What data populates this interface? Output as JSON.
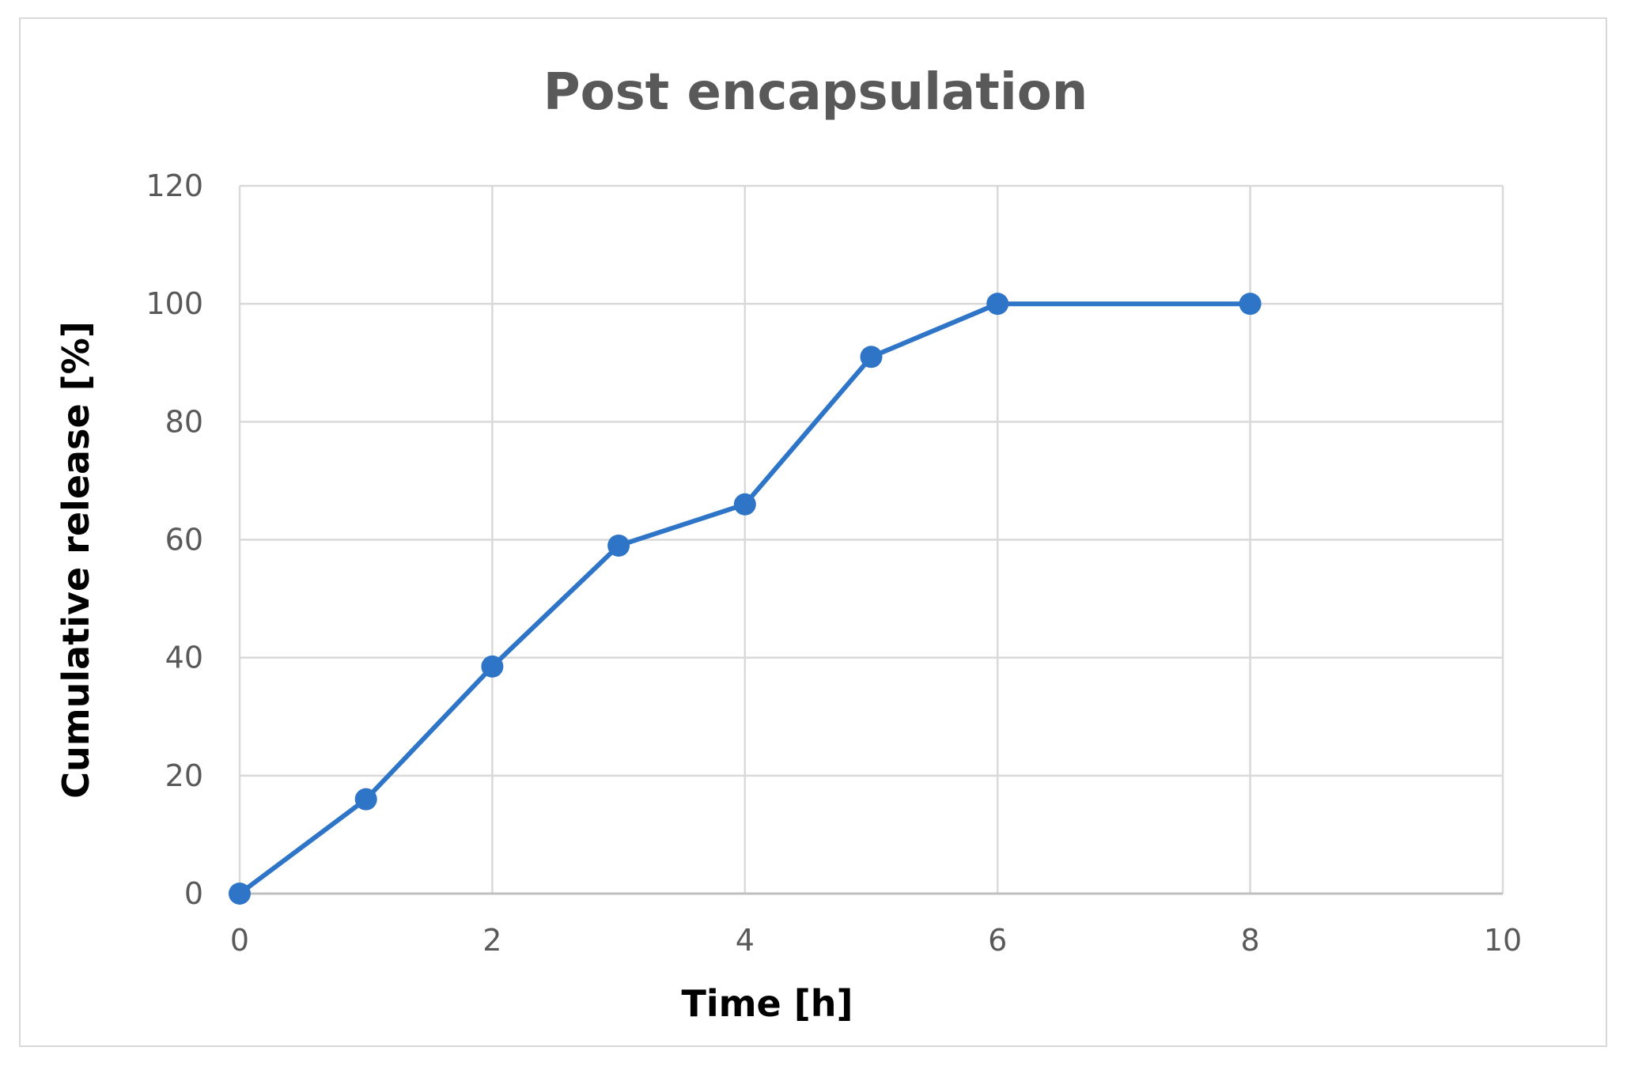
{
  "chart_data": {
    "type": "line",
    "title": "Post encapsulation",
    "xlabel": "Time [h]",
    "ylabel": "Cumulative release [%]",
    "xlim": [
      0,
      10
    ],
    "ylim": [
      0,
      120
    ],
    "x_ticks": [
      "0",
      "2",
      "4",
      "6",
      "8",
      "10"
    ],
    "y_ticks": [
      "0",
      "20",
      "40",
      "60",
      "80",
      "100",
      "120"
    ],
    "grid": true,
    "legend": "none",
    "series": [
      {
        "color": "#2E75C8",
        "marker": "circle",
        "x": [
          0,
          1,
          2,
          3,
          4,
          5,
          6,
          8
        ],
        "y": [
          0,
          16,
          38.5,
          59,
          66,
          91,
          100,
          100
        ]
      }
    ]
  }
}
